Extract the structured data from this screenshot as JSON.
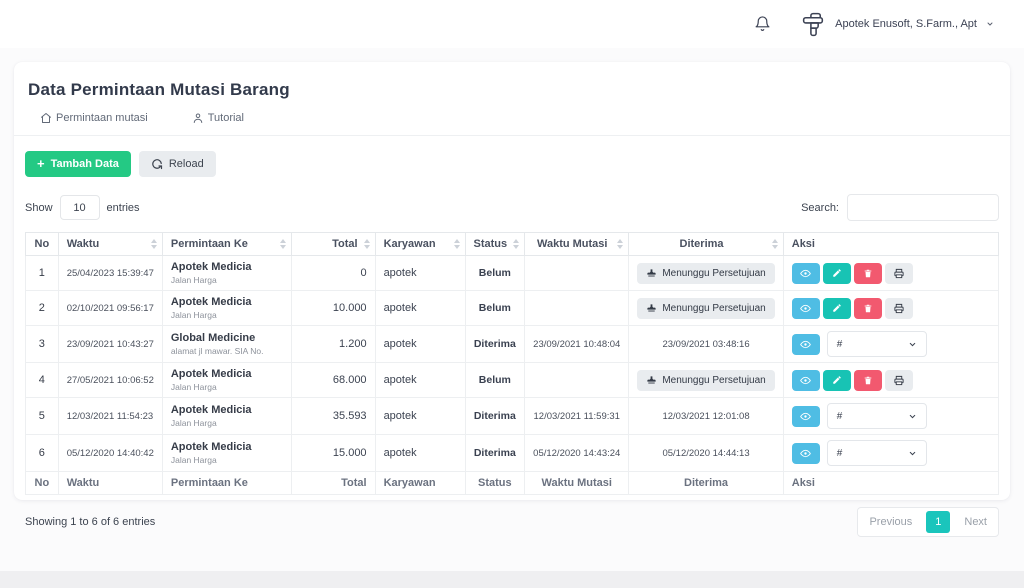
{
  "colors": {
    "green": "#24c984",
    "teal": "#18c3b4",
    "blue": "#4fbde4",
    "red": "#f2596f",
    "page_active": "#1ac5bc"
  },
  "topbar": {
    "user_label": "Apotek Enusoft, S.Farm., Apt"
  },
  "page": {
    "title": "Data Permintaan Mutasi Barang",
    "nav": [
      {
        "icon": "home",
        "label": "Permintaan mutasi"
      },
      {
        "icon": "user",
        "label": "Tutorial"
      }
    ]
  },
  "toolbar": {
    "add_label": "Tambah Data",
    "reload_label": "Reload",
    "show_label": "Show",
    "page_length": "10",
    "entries_label": "entries",
    "search_label": "Search:",
    "search_value": ""
  },
  "table": {
    "columns": [
      {
        "label": "No",
        "sortable": false
      },
      {
        "label": "Waktu",
        "sortable": true
      },
      {
        "label": "Permintaan Ke",
        "sortable": true
      },
      {
        "label": "Total",
        "sortable": true
      },
      {
        "label": "Karyawan",
        "sortable": true
      },
      {
        "label": "Status",
        "sortable": true
      },
      {
        "label": "Waktu Mutasi",
        "sortable": true
      },
      {
        "label": "Diterima",
        "sortable": true
      },
      {
        "label": "Aksi",
        "sortable": false
      }
    ],
    "pending_label": "Menunggu Persetujuan",
    "action_select_value": "#",
    "rows": [
      {
        "no": "1",
        "waktu": "25/04/2023 15:39:47",
        "tujuan": "Apotek Medicia",
        "tujuan_sub": "Jalan Harga",
        "total": "0",
        "karyawan": "apotek",
        "status": "Belum",
        "waktu_mutasi": "",
        "diterima": "",
        "pending": true,
        "actions": [
          "view",
          "edit",
          "delete",
          "print"
        ],
        "has_select": false
      },
      {
        "no": "2",
        "waktu": "02/10/2021 09:56:17",
        "tujuan": "Apotek Medicia",
        "tujuan_sub": "Jalan Harga",
        "total": "10.000",
        "karyawan": "apotek",
        "status": "Belum",
        "waktu_mutasi": "",
        "diterima": "",
        "pending": true,
        "actions": [
          "view",
          "edit",
          "delete",
          "print"
        ],
        "has_select": false
      },
      {
        "no": "3",
        "waktu": "23/09/2021 10:43:27",
        "tujuan": "Global Medicine",
        "tujuan_sub": "alamat jl mawar. SIA No.",
        "total": "1.200",
        "karyawan": "apotek",
        "status": "Diterima",
        "waktu_mutasi": "23/09/2021 10:48:04",
        "diterima": "23/09/2021 03:48:16",
        "pending": false,
        "actions": [
          "view"
        ],
        "has_select": true
      },
      {
        "no": "4",
        "waktu": "27/05/2021 10:06:52",
        "tujuan": "Apotek Medicia",
        "tujuan_sub": "Jalan Harga",
        "total": "68.000",
        "karyawan": "apotek",
        "status": "Belum",
        "waktu_mutasi": "",
        "diterima": "",
        "pending": true,
        "actions": [
          "view",
          "edit",
          "delete",
          "print"
        ],
        "has_select": false
      },
      {
        "no": "5",
        "waktu": "12/03/2021 11:54:23",
        "tujuan": "Apotek Medicia",
        "tujuan_sub": "Jalan Harga",
        "total": "35.593",
        "karyawan": "apotek",
        "status": "Diterima",
        "waktu_mutasi": "12/03/2021 11:59:31",
        "diterima": "12/03/2021 12:01:08",
        "pending": false,
        "actions": [
          "view"
        ],
        "has_select": true
      },
      {
        "no": "6",
        "waktu": "05/12/2020 14:40:42",
        "tujuan": "Apotek Medicia",
        "tujuan_sub": "Jalan Harga",
        "total": "15.000",
        "karyawan": "apotek",
        "status": "Diterima",
        "waktu_mutasi": "05/12/2020 14:43:24",
        "diterima": "05/12/2020 14:44:13",
        "pending": false,
        "actions": [
          "view"
        ],
        "has_select": true
      }
    ]
  },
  "pagination": {
    "info": "Showing 1 to 6 of 6 entries",
    "previous": "Previous",
    "page": "1",
    "next": "Next"
  }
}
